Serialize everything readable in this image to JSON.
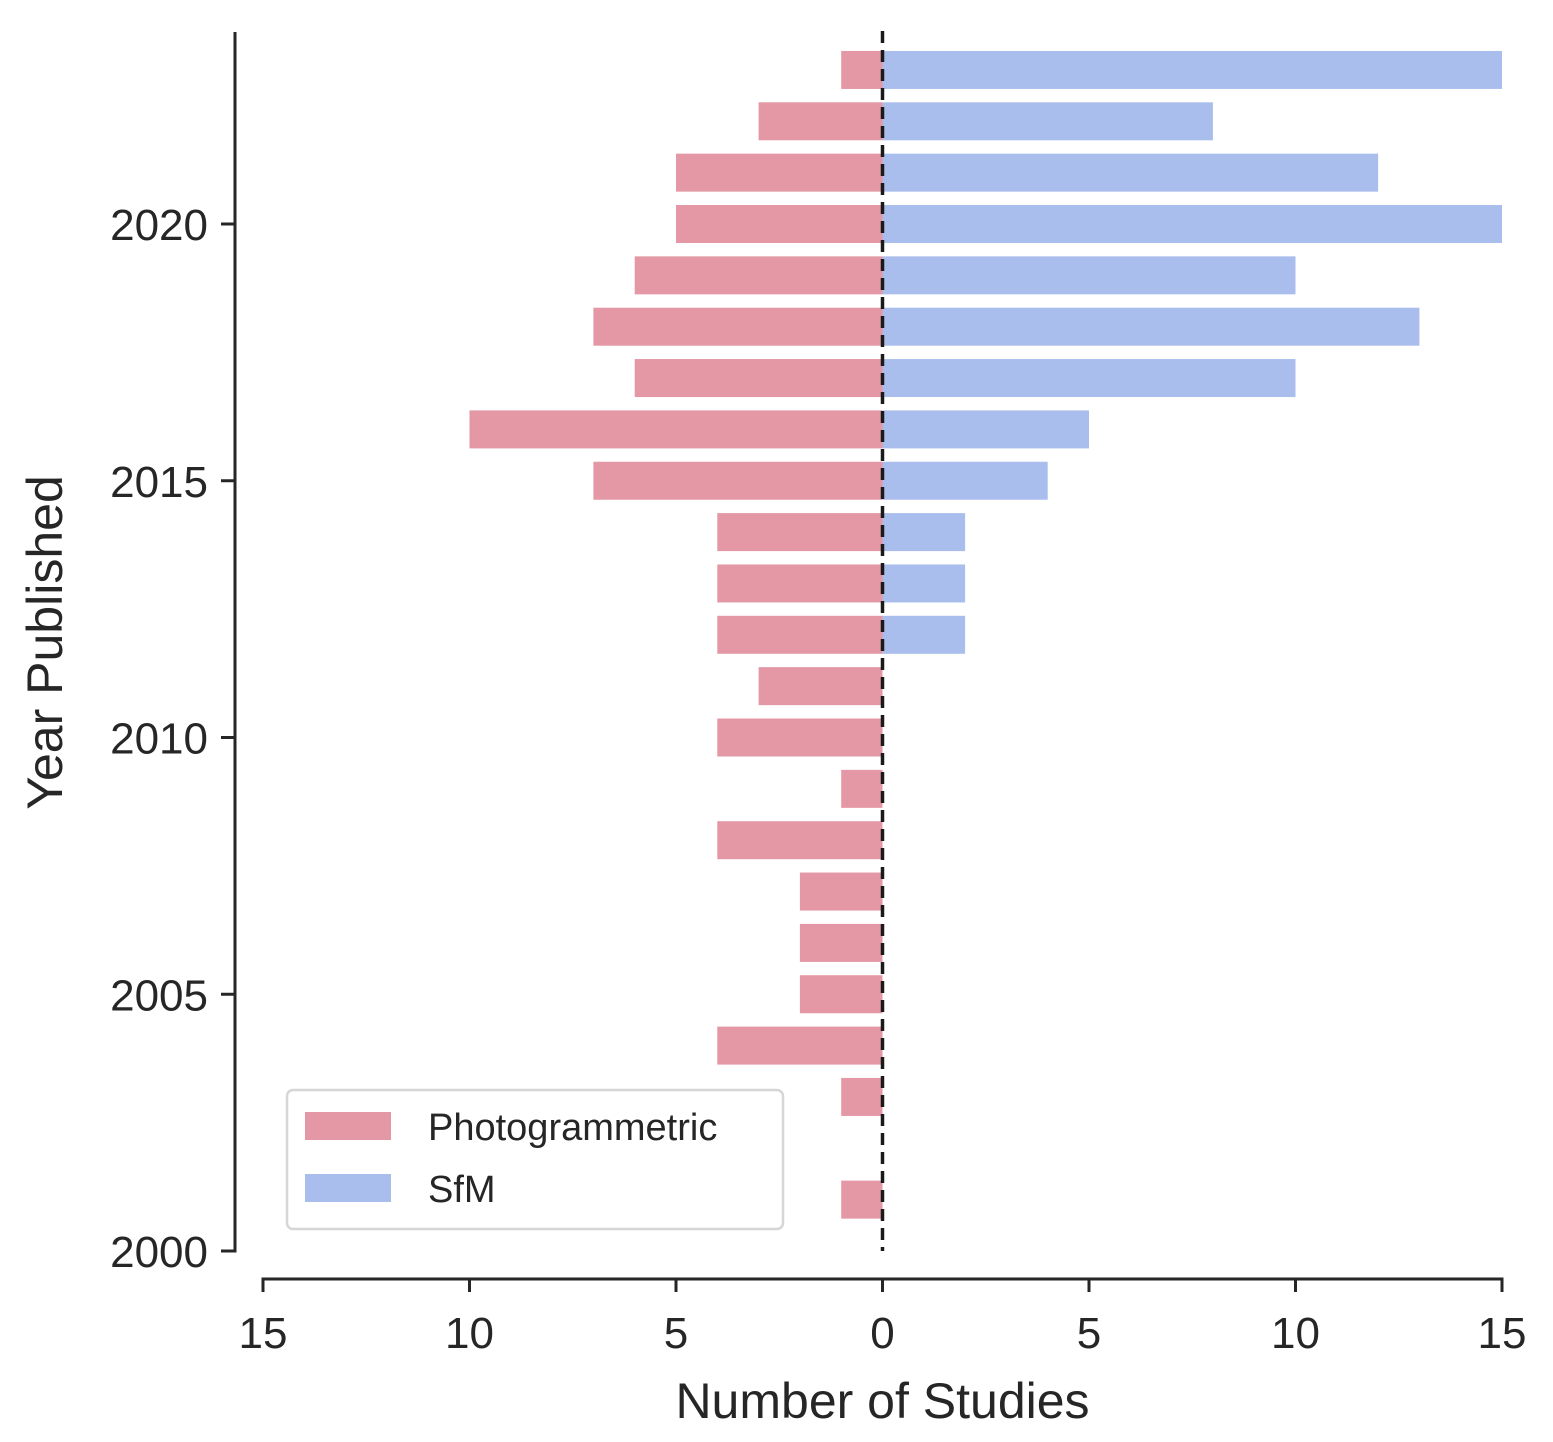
{
  "chart_data": {
    "type": "bar",
    "orientation": "horizontal-diverging",
    "title": "",
    "xlabel": "Number of Studies",
    "ylabel": "Year Published",
    "xlim": [
      -15,
      15
    ],
    "ylim": [
      2000,
      2023.7
    ],
    "x_ticks": [
      -15,
      -10,
      -5,
      0,
      5,
      10,
      15
    ],
    "x_tick_labels": [
      "15",
      "10",
      "5",
      "0",
      "5",
      "10",
      "15"
    ],
    "y_ticks": [
      2000,
      2005,
      2010,
      2015,
      2020
    ],
    "y_tick_labels": [
      "2000",
      "2005",
      "2010",
      "2015",
      "2020"
    ],
    "categories": [
      2001,
      2003,
      2004,
      2005,
      2006,
      2007,
      2008,
      2009,
      2010,
      2011,
      2012,
      2013,
      2014,
      2015,
      2016,
      2017,
      2018,
      2019,
      2020,
      2021,
      2022,
      2023
    ],
    "series": [
      {
        "name": "Photogrammetric",
        "color": "#e497a5",
        "side": "left",
        "values": [
          1,
          1,
          4,
          2,
          2,
          2,
          4,
          1,
          4,
          3,
          4,
          4,
          4,
          7,
          10,
          6,
          7,
          6,
          5,
          5,
          3,
          1
        ]
      },
      {
        "name": "SfM",
        "color": "#aabeed",
        "side": "right",
        "values": [
          0,
          0,
          0,
          0,
          0,
          0,
          0,
          0,
          0,
          0,
          2,
          2,
          2,
          4,
          5,
          10,
          13,
          10,
          15,
          12,
          8,
          15
        ]
      }
    ],
    "zero_line": "dashed",
    "legend": {
      "position": "lower-left",
      "entries": [
        "Photogrammetric",
        "SfM"
      ]
    },
    "grid": false
  }
}
